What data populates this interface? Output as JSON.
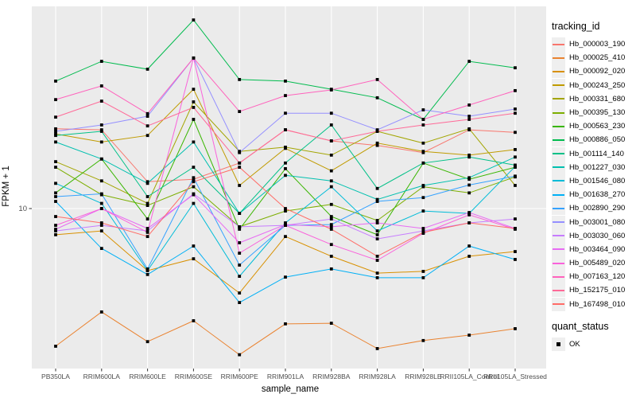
{
  "figure": {
    "xlabel": "sample_name",
    "ylabel": "FPKM + 1",
    "legend_title": "tracking_id",
    "quant_legend_title": "quant_status"
  },
  "style": {
    "panel_bg": "#EBEBEB",
    "grid_color": "#FFFFFF",
    "tick_text_color": "#4D4D4D",
    "tick_mark_color": "#333333",
    "point_color": "#000000"
  },
  "chart_data": {
    "type": "line",
    "title": "",
    "xlabel": "sample_name",
    "ylabel": "FPKM + 1",
    "yscale": "log10",
    "ylim": [
      2.1,
      63
    ],
    "y_ticks": [
      10
    ],
    "y_tick_labels": [
      "10"
    ],
    "grid": true,
    "legend_position": "right",
    "point_shape": "filled-black-square",
    "quant_status_items": [
      "OK"
    ],
    "categories": [
      "PB350LA",
      "RRIM600LA",
      "RRIM600LE",
      "RRIM600SE",
      "RRIM600PE",
      "RRIM901LA",
      "RRIM928BA",
      "RRIM928LA",
      "RRIM928LE",
      "RRII105LA_Control",
      "RRII105LA_Stressed"
    ],
    "series": [
      {
        "name": "Hb_000003_190",
        "color": "#F8766D",
        "values": [
          21.3,
          21.1,
          12.9,
          13.2,
          15.4,
          21.1,
          19.0,
          18.2,
          17.0,
          21.1,
          20.6
        ]
      },
      {
        "name": "Hb_000025_410",
        "color": "#EA8331",
        "values": [
          2.71,
          3.75,
          2.83,
          3.45,
          2.5,
          3.35,
          3.37,
          2.65,
          2.86,
          3.01,
          3.2
        ]
      },
      {
        "name": "Hb_000092_020",
        "color": "#D89000",
        "values": [
          7.8,
          8.09,
          5.55,
          6.21,
          4.49,
          7.67,
          6.36,
          5.42,
          5.51,
          6.36,
          6.65
        ]
      },
      {
        "name": "Hb_000243_250",
        "color": "#C09B00",
        "values": [
          20.3,
          18.8,
          20.0,
          31.0,
          12.45,
          17.7,
          14.3,
          18.6,
          17.2,
          16.6,
          17.5
        ]
      },
      {
        "name": "Hb_000331_680",
        "color": "#A3A500",
        "values": [
          15.6,
          13.0,
          10.5,
          27.5,
          17.2,
          17.9,
          16.6,
          20.8,
          18.6,
          21.3,
          12.45
        ]
      },
      {
        "name": "Hb_000395_130",
        "color": "#7CAE00",
        "values": [
          14.8,
          11.4,
          10.3,
          12.3,
          8.41,
          9.77,
          10.4,
          8.93,
          12.3,
          11.6,
          13.5
        ]
      },
      {
        "name": "Hb_000563_230",
        "color": "#39B600",
        "values": [
          11.6,
          16.0,
          9.06,
          23.3,
          8.22,
          14.6,
          9.27,
          7.8,
          15.4,
          13.2,
          14.8
        ]
      },
      {
        "name": "Hb_000886_050",
        "color": "#00BB4E",
        "values": [
          33.5,
          40.4,
          37.5,
          59.8,
          34.0,
          33.5,
          31.0,
          28.6,
          23.3,
          40.4,
          38.0
        ]
      },
      {
        "name": "Hb_001114_140",
        "color": "#00C087",
        "values": [
          20.0,
          20.8,
          11.2,
          14.8,
          9.55,
          15.4,
          22.1,
          12.1,
          15.4,
          16.3,
          15.1
        ]
      },
      {
        "name": "Hb_001227_030",
        "color": "#00C0AF",
        "values": [
          18.8,
          16.0,
          12.7,
          18.8,
          9.55,
          13.7,
          13.0,
          10.9,
          12.45,
          13.4,
          16.3
        ]
      },
      {
        "name": "Hb_001546_080",
        "color": "#00BCD8",
        "values": [
          12.7,
          10.5,
          5.55,
          10.5,
          5.26,
          8.73,
          12.3,
          8.09,
          9.77,
          9.55,
          14.9
        ]
      },
      {
        "name": "Hb_001638_270",
        "color": "#00B0F6",
        "values": [
          10.7,
          6.85,
          5.35,
          7.01,
          4.1,
          5.22,
          5.64,
          5.19,
          5.19,
          7.01,
          6.17
        ]
      },
      {
        "name": "Hb_002890_290",
        "color": "#35A2FF",
        "values": [
          11.2,
          11.5,
          5.64,
          13.4,
          5.85,
          8.53,
          8.59,
          10.7,
          11.1,
          12.5,
          13.6
        ]
      },
      {
        "name": "Hb_003001_080",
        "color": "#9590FF",
        "values": [
          20.8,
          22.1,
          24.0,
          41.7,
          17.0,
          24.7,
          24.7,
          21.1,
          25.5,
          24.0,
          25.7
        ]
      },
      {
        "name": "Hb_003030_060",
        "color": "#C77CFF",
        "values": [
          8.09,
          8.53,
          8.09,
          11.5,
          8.41,
          8.53,
          9.06,
          7.5,
          8.09,
          8.73,
          9.06
        ]
      },
      {
        "name": "Hb_003464_090",
        "color": "#E76BF3",
        "values": [
          8.22,
          10.0,
          8.28,
          11.4,
          7.23,
          8.59,
          8.41,
          8.73,
          8.28,
          9.63,
          8.28
        ]
      },
      {
        "name": "Hb_005489_020",
        "color": "#FA62DB",
        "values": [
          8.53,
          10.0,
          7.98,
          41.7,
          6.55,
          8.53,
          7.11,
          6.12,
          7.91,
          9.42,
          8.22
        ]
      },
      {
        "name": "Hb_007163_120",
        "color": "#FF62BC",
        "values": [
          28.1,
          32.0,
          24.6,
          41.7,
          25.1,
          29.2,
          30.8,
          34.0,
          23.3,
          26.7,
          30.6
        ]
      },
      {
        "name": "Hb_152175_010",
        "color": "#FF6A98",
        "values": [
          23.8,
          27.7,
          21.9,
          26.1,
          15.4,
          21.1,
          19.0,
          20.8,
          22.1,
          23.3,
          24.7
        ]
      },
      {
        "name": "Hb_167498_010",
        "color": "#FF6C67",
        "values": [
          9.27,
          8.73,
          7.67,
          12.9,
          14.8,
          10.0,
          8.22,
          6.36,
          7.98,
          8.73,
          8.28
        ]
      }
    ]
  }
}
